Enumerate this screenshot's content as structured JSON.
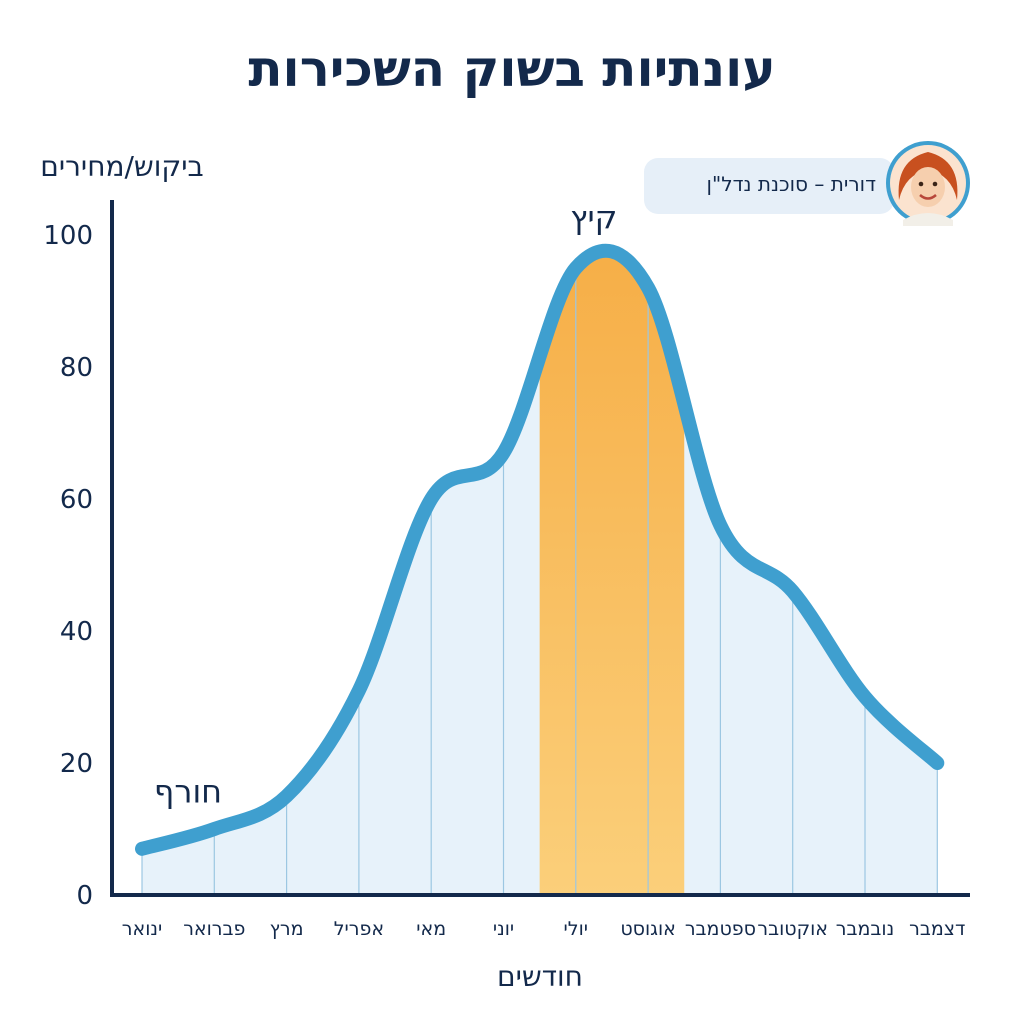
{
  "title": "עונתיות בשוק השכירות",
  "agent": {
    "label": "דורית – סוכנת נדל\"ן"
  },
  "colors": {
    "line": "#3f9fcf",
    "fill": "#e7f2fa",
    "summer": "#f6ad45",
    "axis": "#13294b",
    "text": "#13294b"
  },
  "chart_data": {
    "type": "area",
    "ylabel": "ביקוש/מחירים",
    "xlabel": "חודשים",
    "ylim": [
      0,
      100
    ],
    "yticks": [
      0,
      20,
      40,
      60,
      80,
      100
    ],
    "categories": [
      "ינואר",
      "פברואר",
      "מרץ",
      "אפריל",
      "מאי",
      "יוני",
      "יולי",
      "אוגוסט",
      "ספטמבר",
      "אוקטובר",
      "נובמבר",
      "דצמבר"
    ],
    "series": [
      {
        "values": [
          7,
          10,
          15,
          31,
          60,
          67,
          95,
          92,
          56,
          46,
          30,
          20
        ]
      }
    ],
    "annotations": [
      {
        "text": "חורף",
        "x": "ינואר",
        "y": 14
      },
      {
        "text": "קיץ",
        "x": "יולי",
        "y": 101
      }
    ],
    "highlight": {
      "from": "יוני",
      "to": "אוגוסט",
      "label": "קיץ"
    }
  }
}
